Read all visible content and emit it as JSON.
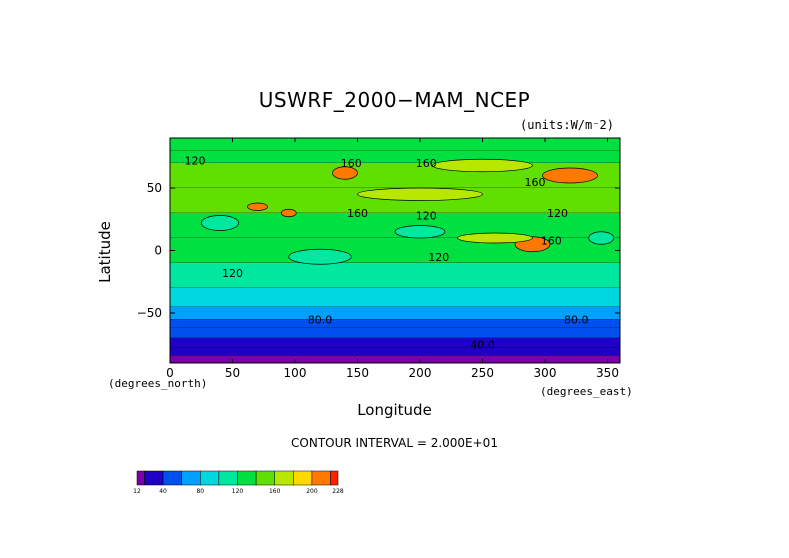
{
  "chart_data": {
    "type": "heatmap",
    "title": "USWRF_2000−MAM_NCEP",
    "units_note": "(units:W/m⁻2)",
    "xlabel": "Longitude",
    "ylabel": "Latitude",
    "x_unit_note": "(degrees_north)",
    "y_unit_note": "(degrees_east)",
    "contour_interval": "CONTOUR INTERVAL = 2.000E+01",
    "xlim": [
      0,
      360
    ],
    "ylim": [
      -90,
      90
    ],
    "x_ticks": [
      "0",
      "50",
      "100",
      "150",
      "200",
      "250",
      "300",
      "350"
    ],
    "y_ticks": [
      "50",
      "0",
      "−50"
    ],
    "y_tick_values": [
      50,
      0,
      -50
    ],
    "x_tick_values": [
      0,
      50,
      100,
      150,
      200,
      250,
      300,
      350
    ],
    "latitude_bands": [
      {
        "lat_from": 90,
        "lat_to": 80,
        "value": 120
      },
      {
        "lat_from": 80,
        "lat_to": 70,
        "value": 130
      },
      {
        "lat_from": 70,
        "lat_to": 50,
        "value": 145
      },
      {
        "lat_from": 50,
        "lat_to": 30,
        "value": 140
      },
      {
        "lat_from": 30,
        "lat_to": 10,
        "value": 125
      },
      {
        "lat_from": 10,
        "lat_to": -10,
        "value": 130
      },
      {
        "lat_from": -10,
        "lat_to": -30,
        "value": 115
      },
      {
        "lat_from": -30,
        "lat_to": -45,
        "value": 95
      },
      {
        "lat_from": -45,
        "lat_to": -55,
        "value": 75
      },
      {
        "lat_from": -55,
        "lat_to": -62,
        "value": 55
      },
      {
        "lat_from": -62,
        "lat_to": -70,
        "value": 40
      },
      {
        "lat_from": -70,
        "lat_to": -78,
        "value": 30
      },
      {
        "lat_from": -78,
        "lat_to": -84,
        "value": 22
      },
      {
        "lat_from": -84,
        "lat_to": -90,
        "value": 14
      }
    ],
    "features": [
      {
        "lon": 320,
        "lat": 60,
        "rx": 22,
        "ry": 6,
        "value": 205
      },
      {
        "lon": 140,
        "lat": 62,
        "rx": 10,
        "ry": 5,
        "value": 200
      },
      {
        "lon": 290,
        "lat": 5,
        "rx": 14,
        "ry": 6,
        "value": 205
      },
      {
        "lon": 70,
        "lat": 35,
        "rx": 8,
        "ry": 3,
        "value": 215
      },
      {
        "lon": 95,
        "lat": 30,
        "rx": 6,
        "ry": 3,
        "value": 215
      },
      {
        "lon": 250,
        "lat": 68,
        "rx": 40,
        "ry": 5,
        "value": 175
      },
      {
        "lon": 200,
        "lat": 45,
        "rx": 50,
        "ry": 5,
        "value": 165
      },
      {
        "lon": 260,
        "lat": 10,
        "rx": 30,
        "ry": 4,
        "value": 165
      },
      {
        "lon": 40,
        "lat": 22,
        "rx": 15,
        "ry": 6,
        "value": 100
      },
      {
        "lon": 120,
        "lat": -5,
        "rx": 25,
        "ry": 6,
        "value": 110
      },
      {
        "lon": 200,
        "lat": 15,
        "rx": 20,
        "ry": 5,
        "value": 110
      },
      {
        "lon": 345,
        "lat": 10,
        "rx": 10,
        "ry": 5,
        "value": 105
      }
    ],
    "contour_labels": [
      {
        "text": "160",
        "lon": 145,
        "lat": 70
      },
      {
        "text": "160",
        "lon": 205,
        "lat": 70
      },
      {
        "text": "160",
        "lon": 150,
        "lat": 30
      },
      {
        "text": "120",
        "lon": 20,
        "lat": 72
      },
      {
        "text": "120",
        "lon": 205,
        "lat": 28
      },
      {
        "text": "120",
        "lon": 310,
        "lat": 30
      },
      {
        "text": "120",
        "lon": 50,
        "lat": -18
      },
      {
        "text": "120",
        "lon": 215,
        "lat": -5
      },
      {
        "text": "160",
        "lon": 305,
        "lat": 8
      },
      {
        "text": "160",
        "lon": 292,
        "lat": 55
      },
      {
        "text": "80.0",
        "lon": 120,
        "lat": -55
      },
      {
        "text": "80.0",
        "lon": 325,
        "lat": -55
      },
      {
        "text": "40.0",
        "lon": 250,
        "lat": -75
      }
    ],
    "colorbar": {
      "levels": [
        12,
        20,
        40,
        60,
        80,
        100,
        120,
        140,
        160,
        180,
        200,
        220,
        228
      ],
      "tick_labels": [
        "12",
        "40",
        "80",
        "120",
        "160",
        "200",
        "228"
      ],
      "tick_values": [
        12,
        40,
        80,
        120,
        160,
        200,
        228
      ],
      "colors": [
        "#7a00a8",
        "#1e00c8",
        "#0050f0",
        "#00a0ff",
        "#00d8e0",
        "#00e8a0",
        "#00e040",
        "#60e000",
        "#b8e800",
        "#ffd800",
        "#ff7800",
        "#ff2000"
      ]
    }
  }
}
